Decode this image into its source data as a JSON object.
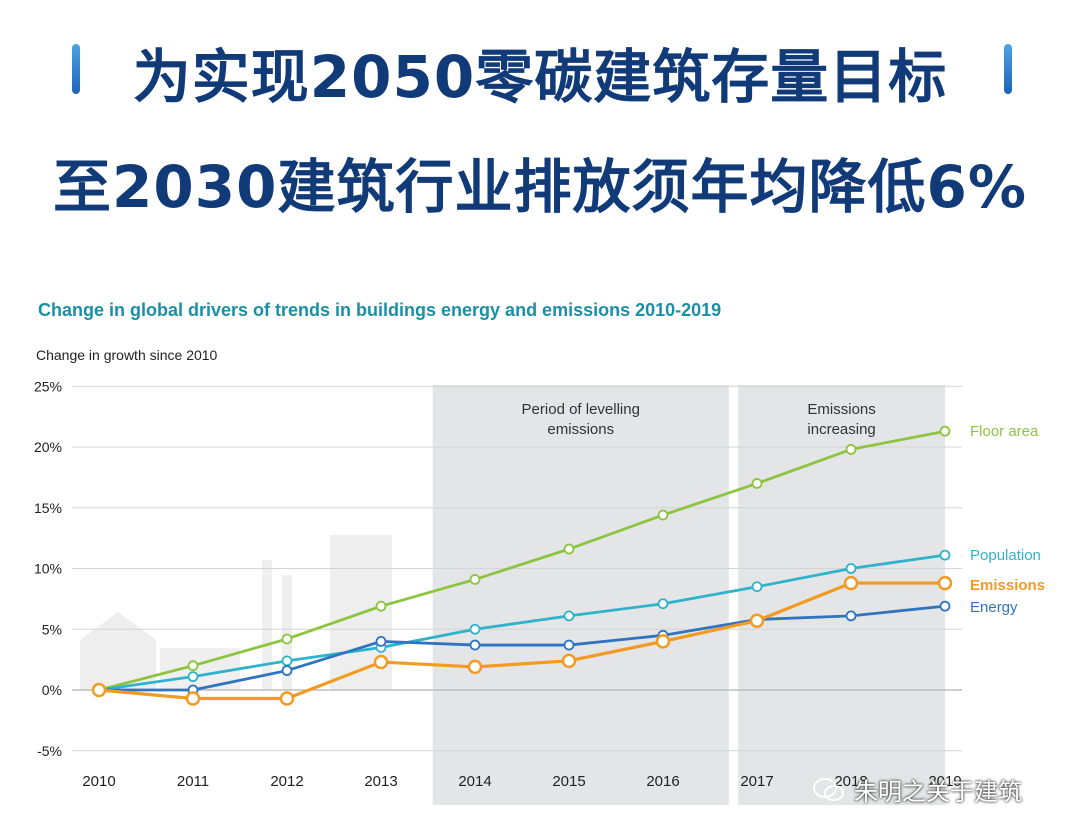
{
  "headline": {
    "line1": "为实现2050零碳建筑存量目标",
    "line2": "至2030建筑行业排放须年均降低6%"
  },
  "watermark": "朱明之关于建筑",
  "chart_data": {
    "type": "line",
    "title": "Change in global drivers of trends in buildings energy and emissions 2010-2019",
    "ylabel": "Change in growth since 2010",
    "xlabel": "",
    "x": [
      "2010",
      "2011",
      "2012",
      "2013",
      "2014",
      "2015",
      "2016",
      "2017",
      "2018",
      "2019"
    ],
    "x_tick_labels": [
      "2010",
      "2011",
      "2012",
      "2013",
      "2014",
      "2015",
      "2016",
      "2017",
      "2018",
      "2019"
    ],
    "ylim": [
      -5,
      25
    ],
    "yticks": [
      -5,
      0,
      5,
      10,
      15,
      20,
      25
    ],
    "ytick_labels": [
      "-5%",
      "0%",
      "5%",
      "10%",
      "15%",
      "20%",
      "25%"
    ],
    "grid": true,
    "periods": [
      {
        "label_line1": "Period of levelling",
        "label_line2": "emissions",
        "from": 2013.55,
        "to": 2016.7
      },
      {
        "label_line1": "Emissions",
        "label_line2": "increasing",
        "from": 2016.8,
        "to": 2019.0
      }
    ],
    "series": [
      {
        "name": "Floor area",
        "color": "#8cc43f",
        "values": [
          0,
          2.0,
          4.2,
          6.9,
          9.1,
          11.6,
          14.4,
          17.0,
          19.8,
          21.3
        ]
      },
      {
        "name": "Population",
        "color": "#2fb3cc",
        "values": [
          0,
          1.1,
          2.4,
          3.5,
          5.0,
          6.1,
          7.1,
          8.5,
          10.0,
          11.1
        ]
      },
      {
        "name": "Emissions",
        "color": "#f29a22",
        "values": [
          0,
          -0.7,
          -0.7,
          2.3,
          1.9,
          2.4,
          4.0,
          5.7,
          8.8,
          8.8
        ]
      },
      {
        "name": "Energy",
        "color": "#2e74c0",
        "values": [
          0,
          0,
          1.6,
          4.0,
          3.7,
          3.7,
          4.5,
          5.8,
          6.1,
          6.9
        ]
      }
    ]
  }
}
